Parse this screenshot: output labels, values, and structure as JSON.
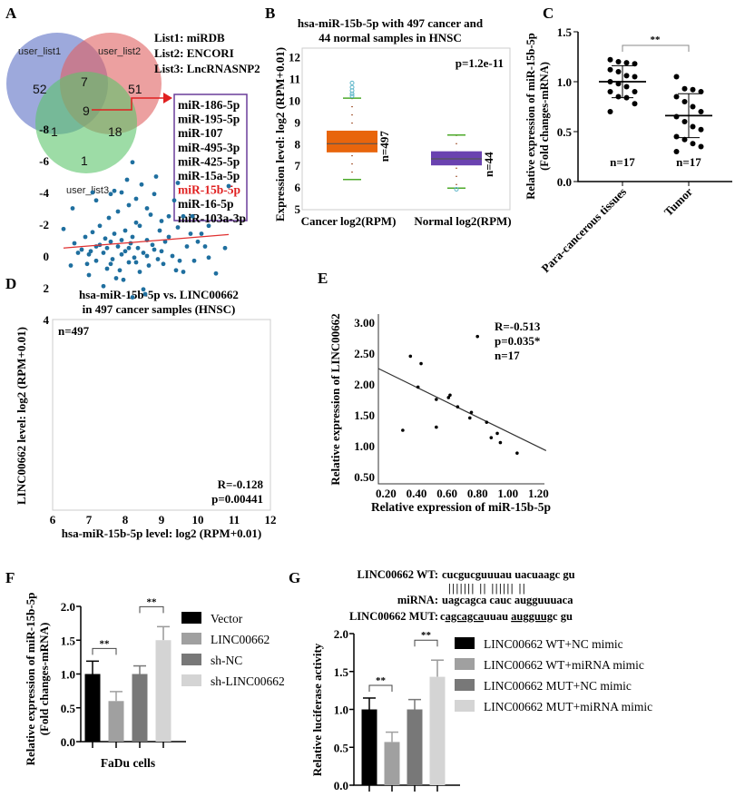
{
  "panels": {
    "A": "A",
    "B": "B",
    "C": "C",
    "D": "D",
    "E": "E",
    "F": "F",
    "G": "G"
  },
  "chart_data": [
    {
      "panel": "A",
      "type": "venn",
      "sets": [
        {
          "name": "user_list1",
          "color": "#5b6fc4"
        },
        {
          "name": "user_list2",
          "color": "#e06060"
        },
        {
          "name": "user_list3",
          "color": "#5cc46a"
        }
      ],
      "regions": {
        "only1": "52",
        "only2": "51",
        "only3": "1",
        "1and2": "7",
        "1and3": "1",
        "2and3": "18",
        "all": "9"
      },
      "lists": [
        "List1: miRDB",
        "List2: ENCORI",
        "List3: LncRNASNP2"
      ],
      "intersection": [
        "miR-186-5p",
        "miR-195-5p",
        "miR-107",
        "miR-495-3p",
        "miR-425-5p",
        "miR-15a-5p",
        "miR-15b-5p",
        "miR-16-5p",
        "miR-103a-3p"
      ],
      "highlight": "miR-15b-5p",
      "highlight_color": "#e02020",
      "box_color": "#6a3d9a"
    },
    {
      "panel": "B",
      "type": "box",
      "title": [
        "hsa-miR-15b-5p with 497 cancer and",
        "44 normal samples in HNSC"
      ],
      "ylabel": "Expression level: log2 (RPM+0.01)",
      "ylim": [
        5,
        12
      ],
      "yticks": [
        "5",
        "6",
        "7",
        "8",
        "9",
        "10",
        "11",
        "12"
      ],
      "pvalue": "p=1.2e-11",
      "groups": [
        {
          "label": "Cancer log2(RPM)",
          "n": "n=497",
          "min": 6.35,
          "q1": 7.6,
          "median": 8.0,
          "q3": 8.6,
          "max": 10.1,
          "outliers": [
            10.2,
            10.3,
            10.45,
            10.6,
            10.8
          ],
          "color": "#e8650c"
        },
        {
          "label": "Normal log2(RPM)",
          "n": "n=44",
          "min": 5.95,
          "q1": 7.0,
          "median": 7.3,
          "q3": 7.65,
          "max": 8.4,
          "outliers": [
            5.9
          ],
          "color": "#6a42b0"
        }
      ]
    },
    {
      "panel": "C",
      "type": "scatter-dot",
      "ylabel": [
        "Relative expression of miR-15b-5p",
        "(Fold changes-mRNA)"
      ],
      "ylim": [
        0,
        1.5
      ],
      "yticks": [
        "0.0",
        "0.5",
        "1.0",
        "1.5"
      ],
      "significance": "**",
      "groups": [
        {
          "label": "Para-cancerous tissues",
          "n": "n=17",
          "mean": 1.0,
          "sd": 0.16,
          "values": [
            1.22,
            1.2,
            1.19,
            1.18,
            1.12,
            1.1,
            1.06,
            1.05,
            1.0,
            0.98,
            0.95,
            0.9,
            0.9,
            0.85,
            0.84,
            0.78,
            0.7
          ]
        },
        {
          "label": "Tumor",
          "n": "n=17",
          "mean": 0.66,
          "sd": 0.22,
          "values": [
            1.05,
            0.93,
            0.92,
            0.9,
            0.85,
            0.8,
            0.75,
            0.7,
            0.65,
            0.6,
            0.55,
            0.52,
            0.45,
            0.42,
            0.38,
            0.35,
            0.3
          ]
        }
      ]
    },
    {
      "panel": "D",
      "type": "scatter",
      "title": [
        "hsa-miR-15b-5p vs. LINC00662",
        "in 497 cancer samples (HNSC)"
      ],
      "xlabel": "hsa-miR-15b-5p level: log2 (RPM+0.01)",
      "ylabel": "LINC00662 level: log2 (RPM+0.01)",
      "xlim": [
        6,
        12
      ],
      "ylim": [
        -8,
        4
      ],
      "xticks": [
        "6",
        "7",
        "8",
        "9",
        "10",
        "11",
        "12"
      ],
      "yticks": [
        "-8",
        "-6",
        "-4",
        "-2",
        "0",
        "2",
        "4"
      ],
      "n": "n=497",
      "r": "R=-0.128",
      "p": "p=0.00441",
      "point_color": "#1f6f9f",
      "line_color": "#e03030",
      "fit": [
        [
          6.3,
          -0.5
        ],
        [
          10.85,
          -1.35
        ]
      ],
      "points": [
        [
          6.3,
          -1.7
        ],
        [
          6.5,
          0.6
        ],
        [
          6.55,
          -3
        ],
        [
          6.6,
          -0.8
        ],
        [
          6.7,
          -0.2
        ],
        [
          6.8,
          -0.4
        ],
        [
          6.9,
          -1.2
        ],
        [
          6.95,
          0.5
        ],
        [
          7.0,
          1.2
        ],
        [
          7.05,
          -0.3
        ],
        [
          7.1,
          -4
        ],
        [
          7.1,
          -1.5
        ],
        [
          7.2,
          -3.5
        ],
        [
          7.2,
          0.3
        ],
        [
          7.3,
          -0.7
        ],
        [
          7.3,
          -1.9
        ],
        [
          7.4,
          1.9
        ],
        [
          7.4,
          -0.2
        ],
        [
          7.45,
          -1.1
        ],
        [
          7.5,
          0.8
        ],
        [
          7.5,
          -0.5
        ],
        [
          7.55,
          -2.4
        ],
        [
          7.6,
          -3.9
        ],
        [
          7.6,
          -0.9
        ],
        [
          7.65,
          0.2
        ],
        [
          7.7,
          -1.4
        ],
        [
          7.7,
          -4.1
        ],
        [
          7.75,
          1.4
        ],
        [
          7.8,
          -0.6
        ],
        [
          7.8,
          -2.8
        ],
        [
          7.85,
          0.9
        ],
        [
          7.9,
          -1.0
        ],
        [
          7.9,
          -4.0
        ],
        [
          7.95,
          1.5
        ],
        [
          8.0,
          -0.3
        ],
        [
          8.0,
          -1.6
        ],
        [
          8.05,
          -4.8
        ],
        [
          8.1,
          0.4
        ],
        [
          8.1,
          -3.2
        ],
        [
          8.15,
          -0.8
        ],
        [
          8.2,
          2.6
        ],
        [
          8.2,
          -5.9
        ],
        [
          8.2,
          -1.2
        ],
        [
          8.25,
          0.1
        ],
        [
          8.3,
          -2.1
        ],
        [
          8.3,
          -3.6
        ],
        [
          8.35,
          -0.5
        ],
        [
          8.4,
          1.0
        ],
        [
          8.4,
          -1.9
        ],
        [
          8.45,
          -4.5
        ],
        [
          8.5,
          2.1
        ],
        [
          8.5,
          -0.2
        ],
        [
          8.55,
          2.4
        ],
        [
          8.6,
          -3.0
        ],
        [
          8.6,
          -1.0
        ],
        [
          8.65,
          0.6
        ],
        [
          8.7,
          -2.6
        ],
        [
          8.75,
          -0.7
        ],
        [
          8.8,
          -3.9
        ],
        [
          8.85,
          -5.0
        ],
        [
          8.9,
          0.2
        ],
        [
          8.95,
          -1.6
        ],
        [
          9.0,
          -2.2
        ],
        [
          9.05,
          0.5
        ],
        [
          9.1,
          -0.9
        ],
        [
          9.2,
          -2.5
        ],
        [
          9.3,
          0.0
        ],
        [
          9.35,
          -3.5
        ],
        [
          9.4,
          0.9
        ],
        [
          9.45,
          -1.8
        ],
        [
          9.45,
          -4.6
        ],
        [
          9.5,
          0.3
        ],
        [
          9.6,
          1.0
        ],
        [
          9.6,
          -2.5
        ],
        [
          9.7,
          -0.6
        ],
        [
          9.8,
          -1.4
        ],
        [
          9.85,
          -2.5
        ],
        [
          9.9,
          0.3
        ],
        [
          10.0,
          -0.9
        ],
        [
          10.1,
          -1.4
        ],
        [
          10.2,
          -0.6
        ],
        [
          10.3,
          0.1
        ],
        [
          10.3,
          -1.9
        ],
        [
          10.5,
          1.1
        ],
        [
          10.75,
          -0.5
        ],
        [
          10.85,
          -4.4
        ],
        [
          7.0,
          -0.1
        ],
        [
          7.2,
          -0.6
        ],
        [
          7.6,
          0.5
        ],
        [
          7.9,
          -0.1
        ],
        [
          8.1,
          -0.5
        ],
        [
          8.3,
          0.4
        ],
        [
          8.6,
          0.0
        ],
        [
          8.8,
          -0.4
        ],
        [
          9.2,
          -1.2
        ],
        [
          9.0,
          -0.3
        ]
      ]
    },
    {
      "panel": "E",
      "type": "scatter",
      "xlabel": "Relative expression of miR-15b-5p",
      "ylabel": "Relative expression of LINC00662",
      "xlim": [
        0.15,
        1.25
      ],
      "ylim": [
        0.4,
        3.1
      ],
      "xticks": [
        "0.20",
        "0.40",
        "0.60",
        "0.80",
        "1.00",
        "1.20"
      ],
      "yticks": [
        "0.50",
        "1.00",
        "1.50",
        "2.00",
        "2.50",
        "3.00"
      ],
      "r": "R=-0.513",
      "p": "p=0.035*",
      "n": "n=17",
      "fit": [
        [
          0.15,
          2.25
        ],
        [
          1.25,
          0.92
        ]
      ],
      "points": [
        [
          0.31,
          1.25
        ],
        [
          0.36,
          2.45
        ],
        [
          0.41,
          1.95
        ],
        [
          0.43,
          2.33
        ],
        [
          0.53,
          1.75
        ],
        [
          0.53,
          1.3
        ],
        [
          0.61,
          1.78
        ],
        [
          0.62,
          1.82
        ],
        [
          0.67,
          1.63
        ],
        [
          0.75,
          1.45
        ],
        [
          0.76,
          1.54
        ],
        [
          0.8,
          2.77
        ],
        [
          0.86,
          1.38
        ],
        [
          0.89,
          1.13
        ],
        [
          0.93,
          1.2
        ],
        [
          0.95,
          1.05
        ],
        [
          1.06,
          0.88
        ]
      ]
    },
    {
      "panel": "F",
      "type": "bar",
      "ylabel": [
        "Relative expression of miR-15b-5p",
        "(Fold changes-mRNA)"
      ],
      "xlabel": "FaDu cells",
      "ylim": [
        0,
        2
      ],
      "yticks": [
        "0.0",
        "0.5",
        "1.0",
        "1.5",
        "2.0"
      ],
      "series": [
        {
          "name": "Vector",
          "value": 1.0,
          "error": 0.19,
          "color": "#000000"
        },
        {
          "name": "LINC00662",
          "value": 0.6,
          "error": 0.14,
          "color": "#a0a0a0"
        },
        {
          "name": "sh-NC",
          "value": 1.0,
          "error": 0.12,
          "color": "#787878"
        },
        {
          "name": "sh-LINC00662",
          "value": 1.5,
          "error": 0.2,
          "color": "#d4d4d4"
        }
      ],
      "significance": [
        "**",
        "**"
      ]
    },
    {
      "panel": "G",
      "type": "bar",
      "ylabel": "Relative luciferase activity",
      "ylim": [
        0,
        2
      ],
      "yticks": [
        "0.0",
        "0.5",
        "1.0",
        "1.5",
        "2.0"
      ],
      "series": [
        {
          "name": "LINC00662 WT+NC mimic",
          "value": 1.0,
          "error": 0.15,
          "color": "#000000"
        },
        {
          "name": "LINC00662 WT+miRNA mimic",
          "value": 0.57,
          "error": 0.13,
          "color": "#a0a0a0"
        },
        {
          "name": "LINC00662 MUT+NC mimic",
          "value": 1.0,
          "error": 0.13,
          "color": "#787878"
        },
        {
          "name": "LINC00662 MUT+miRNA mimic",
          "value": 1.43,
          "error": 0.22,
          "color": "#d4d4d4"
        }
      ],
      "significance": [
        "**",
        "**"
      ],
      "sequences": {
        "wt_label": "LINC00662 WT:",
        "wt": "cucgucguuuau uacuaagc gu",
        "pairing": "||||||| || |||||| ||",
        "mirna_label": "miRNA:",
        "mirna": "uagcagca cauc augguuuaca",
        "mut_label": "LINC00662 MUT:",
        "mut": [
          {
            "t": "c",
            "u": false
          },
          {
            "t": "agcagca",
            "u": true
          },
          {
            "t": "uuau ",
            "u": false
          },
          {
            "t": "augguug",
            "u": true
          },
          {
            "t": "c gu",
            "u": false
          }
        ]
      }
    }
  ]
}
